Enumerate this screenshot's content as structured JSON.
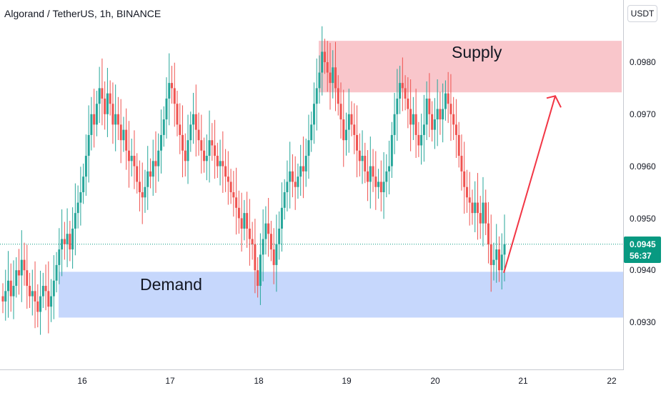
{
  "header": {
    "symbol_title": "Algorand / TetherUS, 1h, BINANCE",
    "currency_button": "USDT"
  },
  "price_axis": {
    "labels": [
      "0.0980",
      "0.0970",
      "0.0960",
      "0.0950",
      "0.0940",
      "0.0930"
    ],
    "last_price": "0.0945",
    "countdown": "56:37"
  },
  "time_axis": {
    "labels": [
      "16",
      "17",
      "18",
      "19",
      "20",
      "21",
      "22"
    ]
  },
  "annotations": {
    "supply_label": "Supply",
    "demand_label": "Demand"
  },
  "colors": {
    "up": "#26a69a",
    "down": "#ef5350",
    "supply_zone": "#f7b3ba",
    "demand_zone": "#b3c9fb",
    "arrow": "#f23645",
    "last_price_badge": "#089981"
  },
  "chart_data": {
    "type": "candlestick",
    "symbol": "Algorand / TetherUS",
    "interval": "1h",
    "exchange": "BINANCE",
    "ylim": [
      0.0921,
      0.0991
    ],
    "x_ticks": [
      "16",
      "17",
      "18",
      "19",
      "20",
      "21",
      "22"
    ],
    "last_price": 0.0945,
    "zones": [
      {
        "label": "Supply",
        "from": 0.09742,
        "to": 0.09841
      },
      {
        "label": "Demand",
        "from": 0.09309,
        "to": 0.09397
      }
    ],
    "projection_arrow": {
      "from_price": 0.09395,
      "to_price": 0.09735
    },
    "close": [
      0.0934,
      0.0936,
      0.0938,
      0.0935,
      0.0937,
      0.094,
      0.0939,
      0.0942,
      0.094,
      0.0937,
      0.0935,
      0.0936,
      0.0934,
      0.0932,
      0.0935,
      0.0937,
      0.0936,
      0.0933,
      0.0935,
      0.0938,
      0.0941,
      0.0944,
      0.0946,
      0.0945,
      0.0947,
      0.0944,
      0.0948,
      0.0951,
      0.0953,
      0.0955,
      0.0958,
      0.0962,
      0.0966,
      0.097,
      0.0968,
      0.0972,
      0.0975,
      0.0973,
      0.097,
      0.0974,
      0.0972,
      0.0968,
      0.097,
      0.0968,
      0.0965,
      0.0967,
      0.0963,
      0.0961,
      0.0962,
      0.096,
      0.0957,
      0.0955,
      0.0954,
      0.0956,
      0.0959,
      0.0958,
      0.0961,
      0.096,
      0.0963,
      0.0966,
      0.0969,
      0.0973,
      0.0976,
      0.0975,
      0.0972,
      0.0968,
      0.0966,
      0.0963,
      0.0961,
      0.0965,
      0.0968,
      0.097,
      0.0967,
      0.0965,
      0.0963,
      0.0961,
      0.0962,
      0.0965,
      0.0964,
      0.0962,
      0.096,
      0.0961,
      0.096,
      0.0958,
      0.0957,
      0.0955,
      0.0954,
      0.0952,
      0.095,
      0.0948,
      0.0951,
      0.0948,
      0.0946,
      0.0945,
      0.094,
      0.0937,
      0.0943,
      0.0946,
      0.0949,
      0.0947,
      0.0944,
      0.0941,
      0.0945,
      0.0948,
      0.0952,
      0.0955,
      0.0957,
      0.0959,
      0.0957,
      0.0956,
      0.0958,
      0.096,
      0.0959,
      0.0962,
      0.0965,
      0.0968,
      0.0972,
      0.0975,
      0.0978,
      0.0982,
      0.098,
      0.0978,
      0.0976,
      0.0979,
      0.0975,
      0.0972,
      0.0969,
      0.0965,
      0.0967,
      0.097,
      0.0968,
      0.0966,
      0.0963,
      0.0961,
      0.0962,
      0.0959,
      0.0957,
      0.096,
      0.0958,
      0.0956,
      0.0957,
      0.0955,
      0.0957,
      0.0959,
      0.096,
      0.0966,
      0.097,
      0.0973,
      0.0976,
      0.0975,
      0.0973,
      0.0971,
      0.0968,
      0.097,
      0.0966,
      0.0964,
      0.0966,
      0.0968,
      0.0973,
      0.097,
      0.0967,
      0.0969,
      0.0971,
      0.0969,
      0.0971,
      0.0974,
      0.0972,
      0.097,
      0.0968,
      0.0966,
      0.0962,
      0.0959,
      0.0956,
      0.0954,
      0.0953,
      0.0951,
      0.0953,
      0.0951,
      0.0949,
      0.0953,
      0.0949,
      0.0945,
      0.0941,
      0.0942,
      0.0944,
      0.094,
      0.0943,
      0.0945
    ],
    "open": 0.0935
  }
}
